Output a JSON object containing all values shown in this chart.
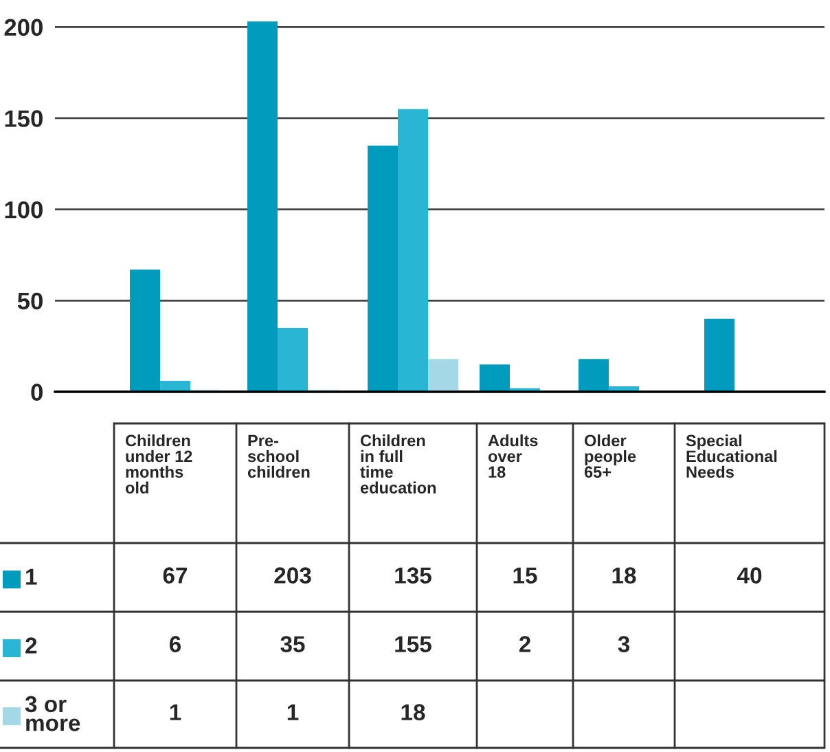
{
  "chart_data": {
    "type": "bar",
    "categories": [
      "Children\nunder 12\nmonths\nold",
      "Pre-\nschool\nchildren",
      "Children\nin full\ntime\neducation",
      "Adults\nover\n18",
      "Older\npeople\n65+",
      "Special\nEducational\nNeeds"
    ],
    "series": [
      {
        "name": "1",
        "color": "#009bbd",
        "values": [
          67,
          203,
          135,
          15,
          18,
          40
        ]
      },
      {
        "name": "2",
        "color": "#29b6d4",
        "values": [
          6,
          35,
          155,
          2,
          3,
          null
        ]
      },
      {
        "name": "3 or\nmore",
        "color": "#a4d8e6",
        "values": [
          1,
          1,
          18,
          null,
          null,
          null
        ]
      }
    ],
    "ylim": [
      0,
      205
    ],
    "yticks": [
      0,
      50,
      100,
      150,
      200
    ],
    "grid": "y",
    "data_labels": true,
    "legend": "bottom left"
  }
}
